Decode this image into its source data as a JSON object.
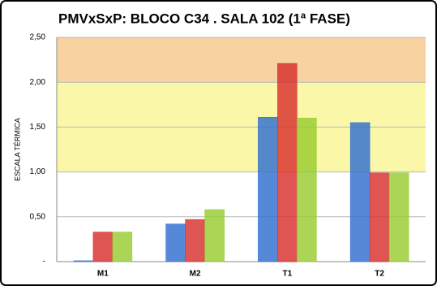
{
  "chart_data": {
    "type": "bar",
    "title": "PMVxSxP: BLOCO C34 . SALA 102 (1ª FASE)",
    "y_label": "ESCALA TÉRMICA",
    "categories": [
      "M1",
      "M2",
      "T1",
      "T2"
    ],
    "series": [
      {
        "color": "#2f6fd0",
        "values": [
          0.01,
          0.42,
          1.61,
          1.55
        ]
      },
      {
        "color": "#d8302e",
        "values": [
          0.33,
          0.47,
          2.21,
          0.99
        ]
      },
      {
        "color": "#98cc30",
        "values": [
          0.33,
          0.58,
          1.6,
          0.99
        ]
      }
    ],
    "ylim": [
      0,
      2.5
    ],
    "yticks": [
      {
        "value": 0,
        "label": "-"
      },
      {
        "value": 0.5,
        "label": "0,50"
      },
      {
        "value": 1,
        "label": "1,00"
      },
      {
        "value": 1.5,
        "label": "1,50"
      },
      {
        "value": 2,
        "label": "2,00"
      },
      {
        "value": 2.5,
        "label": "2,50"
      }
    ],
    "bands": [
      {
        "from": 1,
        "to": 2,
        "color": "#fbf7a8"
      },
      {
        "from": 2,
        "to": 2.5,
        "color": "#f8d3a2"
      }
    ],
    "grid": true
  }
}
